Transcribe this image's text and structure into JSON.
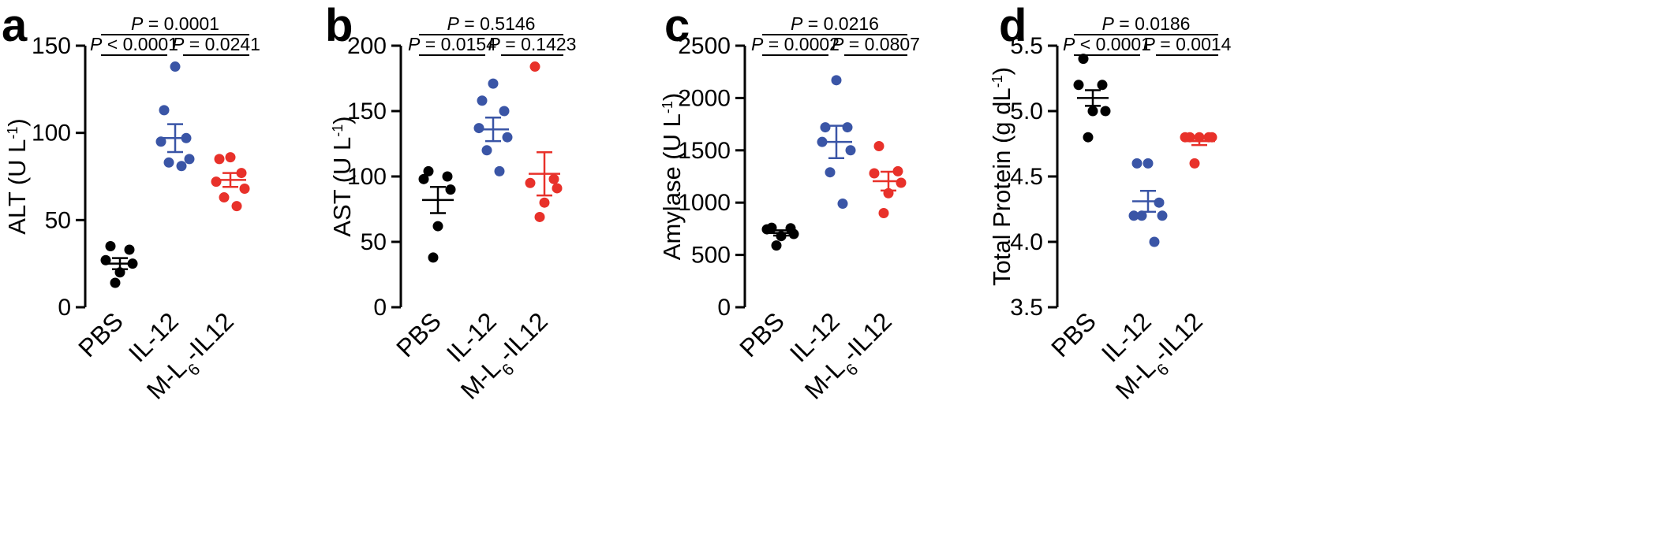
{
  "chart_data": [
    {
      "type": "scatter",
      "panel": "a",
      "ylabel": "ALT (U L",
      "ylabel_sup": "-1",
      "ylabel_close": ")",
      "ylim": [
        0,
        150
      ],
      "yticks": [
        0,
        50,
        100,
        150
      ],
      "ytick_labels": [
        "0",
        "50",
        "100",
        "150"
      ],
      "categories": [
        "PBS",
        "IL-12",
        "M-L6-IL12"
      ],
      "category_labels": [
        {
          "main": "PBS"
        },
        {
          "main": "IL-12"
        },
        {
          "main": "M-L",
          "sub": "6",
          "rest": "-IL12"
        }
      ],
      "series": [
        {
          "name": "PBS",
          "color": "#000000",
          "values": [
            35,
            33,
            27,
            25,
            20,
            14
          ],
          "mean": 25,
          "sem": 3.2
        },
        {
          "name": "IL-12",
          "color": "#3a55a6",
          "values": [
            138,
            113,
            97,
            95,
            85,
            83,
            81
          ],
          "mean": 97,
          "sem": 8
        },
        {
          "name": "M-L6-IL12",
          "color": "#e8312a",
          "values": [
            86,
            85,
            77,
            72,
            68,
            63,
            58
          ],
          "mean": 73,
          "sem": 4
        }
      ],
      "comparisons": [
        {
          "from": 0,
          "to": 1,
          "level": 1,
          "label_italic": "P",
          "label_rest": " < 0.0001"
        },
        {
          "from": 1,
          "to": 2,
          "level": 1,
          "label_italic": "P",
          "label_rest": " = 0.0241"
        },
        {
          "from": 0,
          "to": 2,
          "level": 2,
          "label_italic": "P",
          "label_rest": " = 0.0001"
        }
      ]
    },
    {
      "type": "scatter",
      "panel": "b",
      "ylabel": "AST (U L",
      "ylabel_sup": "-1",
      "ylabel_close": ")",
      "ylim": [
        0,
        200
      ],
      "yticks": [
        0,
        50,
        100,
        150,
        200
      ],
      "ytick_labels": [
        "0",
        "50",
        "100",
        "150",
        "200"
      ],
      "categories": [
        "PBS",
        "IL-12",
        "M-L6-IL12"
      ],
      "category_labels": [
        {
          "main": "PBS"
        },
        {
          "main": "IL-12"
        },
        {
          "main": "M-L",
          "sub": "6",
          "rest": "-IL12"
        }
      ],
      "series": [
        {
          "name": "PBS",
          "color": "#000000",
          "values": [
            104,
            100,
            98,
            90,
            62,
            38
          ],
          "mean": 82,
          "sem": 10
        },
        {
          "name": "IL-12",
          "color": "#3a55a6",
          "values": [
            171,
            158,
            150,
            137,
            130,
            120,
            104
          ],
          "mean": 136,
          "sem": 9
        },
        {
          "name": "M-L6-IL12",
          "color": "#e8312a",
          "values": [
            184,
            98,
            95,
            91,
            80,
            69
          ],
          "mean": 102,
          "sem": 16.5
        }
      ],
      "comparisons": [
        {
          "from": 0,
          "to": 1,
          "level": 1,
          "label_italic": "P",
          "label_rest": " = 0.0154"
        },
        {
          "from": 1,
          "to": 2,
          "level": 1,
          "label_italic": "P",
          "label_rest": " = 0.1423"
        },
        {
          "from": 0,
          "to": 2,
          "level": 2,
          "label_italic": "P",
          "label_rest": " = 0.5146"
        }
      ]
    },
    {
      "type": "scatter",
      "panel": "c",
      "ylabel": "Amylase (U L",
      "ylabel_sup": "-1",
      "ylabel_close": ")",
      "ylim": [
        0,
        2500
      ],
      "yticks": [
        0,
        500,
        1000,
        1500,
        2000,
        2500
      ],
      "ytick_labels": [
        "0",
        "500",
        "1000",
        "1500",
        "2000",
        "2500"
      ],
      "categories": [
        "PBS",
        "IL-12",
        "M-L6-IL12"
      ],
      "category_labels": [
        {
          "main": "PBS"
        },
        {
          "main": "IL-12"
        },
        {
          "main": "M-L",
          "sub": "6",
          "rest": "-IL12"
        }
      ],
      "series": [
        {
          "name": "PBS",
          "color": "#000000",
          "values": [
            760,
            755,
            745,
            700,
            680,
            590
          ],
          "mean": 710,
          "sem": 25
        },
        {
          "name": "IL-12",
          "color": "#3a55a6",
          "values": [
            2170,
            1720,
            1720,
            1580,
            1500,
            1290,
            990
          ],
          "mean": 1580,
          "sem": 155
        },
        {
          "name": "M-L6-IL12",
          "color": "#e8312a",
          "values": [
            1540,
            1300,
            1280,
            1190,
            1090,
            900
          ],
          "mean": 1205,
          "sem": 90
        }
      ],
      "comparisons": [
        {
          "from": 0,
          "to": 1,
          "level": 1,
          "label_italic": "P",
          "label_rest": " = 0.0002"
        },
        {
          "from": 1,
          "to": 2,
          "level": 1,
          "label_italic": "P",
          "label_rest": " = 0.0807"
        },
        {
          "from": 0,
          "to": 2,
          "level": 2,
          "label_italic": "P",
          "label_rest": " = 0.0216"
        }
      ]
    },
    {
      "type": "scatter",
      "panel": "d",
      "ylabel": "Total Protein (g dL",
      "ylabel_sup": "-1",
      "ylabel_close": ")",
      "ylim": [
        3.5,
        5.5
      ],
      "yticks": [
        3.5,
        4.0,
        4.5,
        5.0,
        5.5
      ],
      "ytick_labels": [
        "3.5",
        "4.0",
        "4.5",
        "5.0",
        "5.5"
      ],
      "categories": [
        "PBS",
        "IL-12",
        "M-L6-IL12"
      ],
      "category_labels": [
        {
          "main": "PBS"
        },
        {
          "main": "IL-12"
        },
        {
          "main": "M-L",
          "sub": "6",
          "rest": "-IL12"
        }
      ],
      "series": [
        {
          "name": "PBS",
          "color": "#000000",
          "values": [
            5.4,
            5.2,
            5.2,
            5.0,
            5.0,
            4.8
          ],
          "mean": 5.1,
          "sem": 0.06
        },
        {
          "name": "IL-12",
          "color": "#3a55a6",
          "values": [
            4.6,
            4.6,
            4.3,
            4.2,
            4.2,
            4.2,
            4.0
          ],
          "mean": 4.31,
          "sem": 0.08
        },
        {
          "name": "M-L6-IL12",
          "color": "#e8312a",
          "values": [
            4.8,
            4.8,
            4.8,
            4.8,
            4.8,
            4.6
          ],
          "mean": 4.77,
          "sem": 0.03
        }
      ],
      "comparisons": [
        {
          "from": 0,
          "to": 1,
          "level": 1,
          "label_italic": "P",
          "label_rest": " < 0.0001"
        },
        {
          "from": 1,
          "to": 2,
          "level": 1,
          "label_italic": "P",
          "label_rest": " = 0.0014"
        },
        {
          "from": 0,
          "to": 2,
          "level": 2,
          "label_italic": "P",
          "label_rest": " = 0.0186"
        }
      ]
    }
  ]
}
